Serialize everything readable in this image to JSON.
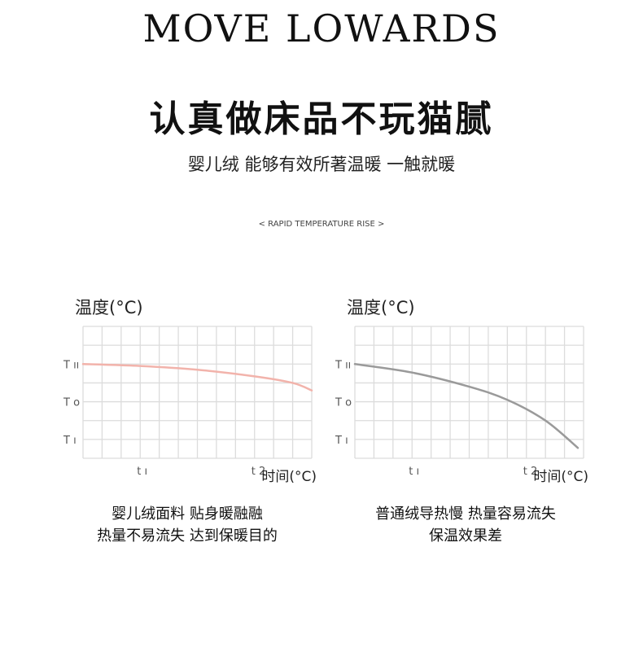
{
  "brand": "MOVE LOWARDS",
  "headline": "认真做床品不玩猫腻",
  "subtitle": "婴儿绒 能够有效所著温暖 一触就暖",
  "tagline": "< RAPID TEMPERATURE RISE >",
  "captions": [
    {
      "line1": "婴儿绒面料 贴身暖融融",
      "line2": "热量不易流失 达到保暖目的"
    },
    {
      "line1": "普通绒导热慢 热量容易流失",
      "line2": "保温效果差"
    }
  ],
  "chart_data": [
    {
      "type": "line",
      "ylabel": "温度(°C)",
      "xlabel": "时间(°C)",
      "grid": true,
      "xlim": [
        0,
        12
      ],
      "ylim": [
        0,
        7
      ],
      "y_ticks": [
        {
          "value": 5,
          "label": "T ıı"
        },
        {
          "value": 3,
          "label": "T o"
        },
        {
          "value": 1,
          "label": "T ı"
        }
      ],
      "x_ticks": [
        {
          "value": 3,
          "label": "t ı"
        },
        {
          "value": 9,
          "label": "t 2"
        }
      ],
      "color": "#f2b3ab",
      "x": [
        0,
        3,
        6,
        9,
        11,
        12
      ],
      "y": [
        5.0,
        4.9,
        4.7,
        4.35,
        4.0,
        3.6
      ]
    },
    {
      "type": "line",
      "ylabel": "温度(°C)",
      "xlabel": "时间(°C)",
      "grid": true,
      "xlim": [
        0,
        12
      ],
      "ylim": [
        0,
        7
      ],
      "y_ticks": [
        {
          "value": 5,
          "label": "T ıı"
        },
        {
          "value": 3,
          "label": "T o"
        },
        {
          "value": 1,
          "label": "T ı"
        }
      ],
      "x_ticks": [
        {
          "value": 3,
          "label": "t ı"
        },
        {
          "value": 9,
          "label": "t 2"
        }
      ],
      "color": "#9a9a9a",
      "x": [
        0,
        3,
        6,
        8,
        10,
        11.7
      ],
      "y": [
        5.0,
        4.55,
        3.8,
        3.1,
        2.0,
        0.55
      ]
    }
  ]
}
